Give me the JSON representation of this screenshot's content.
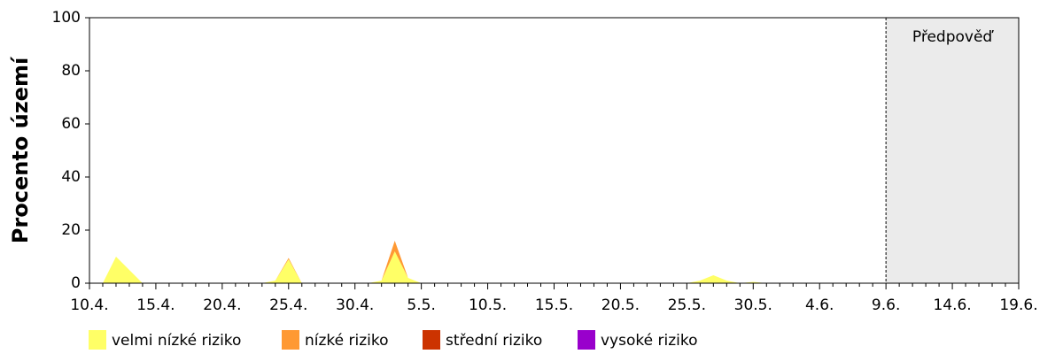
{
  "chart_data": {
    "type": "stacked_area",
    "ylabel": "Procento území",
    "categories": [
      "10.4.",
      null,
      null,
      null,
      null,
      "15.4.",
      null,
      null,
      null,
      null,
      "20.4.",
      null,
      null,
      null,
      null,
      "25.4.",
      null,
      null,
      null,
      null,
      "30.4.",
      null,
      null,
      null,
      null,
      "5.5.",
      null,
      null,
      null,
      null,
      "10.5.",
      null,
      null,
      null,
      null,
      "15.5.",
      null,
      null,
      null,
      null,
      "20.5.",
      null,
      null,
      null,
      null,
      "25.5.",
      null,
      null,
      null,
      null,
      "30.5.",
      null,
      null,
      null,
      null,
      "4.6.",
      null,
      null,
      null,
      null,
      "9.6.",
      null,
      null,
      null,
      null,
      "14.6.",
      null,
      null,
      null,
      null,
      "19.6."
    ],
    "series": [
      {
        "name": "velmi nízké riziko",
        "color": "#ffff66",
        "values": [
          0,
          0,
          10,
          5,
          0,
          0,
          0,
          0,
          0,
          0,
          0,
          0,
          0,
          0,
          1,
          9,
          0,
          0,
          0,
          0,
          0,
          0,
          1,
          12,
          2,
          0,
          0,
          0,
          0,
          0,
          0,
          0,
          0,
          0,
          0,
          0,
          0,
          0,
          0,
          0,
          0,
          0,
          0,
          0,
          0,
          0,
          1,
          3,
          1,
          0,
          0.5,
          0,
          0,
          0,
          0,
          0,
          0,
          0,
          0,
          0,
          0,
          null,
          null,
          null,
          null,
          null,
          null,
          null,
          null,
          null,
          null
        ]
      },
      {
        "name": "nízké riziko",
        "color": "#ff9933",
        "values": [
          0,
          0,
          0,
          0,
          0,
          0,
          0,
          0,
          0,
          0,
          0,
          0,
          0,
          0,
          0,
          0.5,
          0,
          0,
          0,
          0,
          0,
          0,
          0,
          4,
          0,
          0,
          0,
          0,
          0,
          0,
          0,
          0,
          0,
          0,
          0,
          0,
          0,
          0,
          0,
          0,
          0,
          0,
          0,
          0,
          0,
          0,
          0,
          0,
          0,
          0,
          0,
          0,
          0,
          0,
          0,
          0,
          0,
          0,
          0,
          0,
          0,
          null,
          null,
          null,
          null,
          null,
          null,
          null,
          null,
          null,
          null
        ]
      },
      {
        "name": "střední riziko",
        "color": "#cc3300",
        "values": [
          0,
          0,
          0,
          0,
          0,
          0,
          0,
          0,
          0,
          0,
          0,
          0,
          0,
          0,
          0,
          0,
          0,
          0,
          0,
          0,
          0,
          0,
          0,
          0,
          0,
          0,
          0,
          0,
          0,
          0,
          0,
          0,
          0,
          0,
          0,
          0,
          0,
          0,
          0,
          0,
          0,
          0,
          0,
          0,
          0,
          0,
          0,
          0,
          0,
          0,
          0,
          0,
          0,
          0,
          0,
          0,
          0,
          0,
          0,
          0,
          0,
          null,
          null,
          null,
          null,
          null,
          null,
          null,
          null,
          null,
          null
        ]
      },
      {
        "name": "vysoké riziko",
        "color": "#9900cc",
        "values": [
          0,
          0,
          0,
          0,
          0,
          0,
          0,
          0,
          0,
          0,
          0,
          0,
          0,
          0,
          0,
          0,
          0,
          0,
          0,
          0,
          0,
          0,
          0,
          0,
          0,
          0,
          0,
          0,
          0,
          0,
          0,
          0,
          0,
          0,
          0,
          0,
          0,
          0,
          0,
          0,
          0,
          0,
          0,
          0,
          0,
          0,
          0,
          0,
          0,
          0,
          0,
          0,
          0,
          0,
          0,
          0,
          0,
          0,
          0,
          0,
          0,
          null,
          null,
          null,
          null,
          null,
          null,
          null,
          null,
          null,
          null
        ]
      }
    ],
    "forecast": {
      "label": "Předpověď",
      "start": "9.6."
    },
    "ylim": [
      0,
      100
    ],
    "yticks": [
      0,
      20,
      40,
      60,
      80,
      100
    ]
  }
}
